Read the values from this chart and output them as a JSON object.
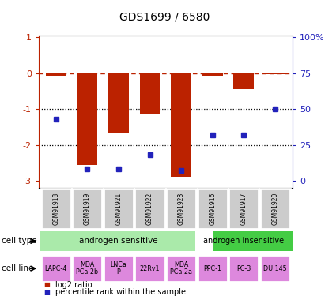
{
  "title": "GDS1699 / 6580",
  "samples": [
    "GSM91918",
    "GSM91919",
    "GSM91921",
    "GSM91922",
    "GSM91923",
    "GSM91916",
    "GSM91917",
    "GSM91920"
  ],
  "log2_ratio": [
    -0.07,
    -2.55,
    -1.65,
    -1.12,
    -2.9,
    -0.08,
    -0.45,
    -0.03
  ],
  "percentile_rank": [
    43,
    8,
    8,
    18,
    7,
    32,
    32,
    50
  ],
  "cell_lines": [
    "LAPC-4",
    "MDA\nPCa 2b",
    "LNCa\nP",
    "22Rv1",
    "MDA\nPCa 2a",
    "PPC-1",
    "PC-3",
    "DU 145"
  ],
  "bar_color": "#bb2200",
  "dot_color": "#2222bb",
  "ylim_min": -3.2,
  "ylim_max": 1.05,
  "sensitive_color": "#aaeaaa",
  "insensitive_color": "#44cc44",
  "cellline_color": "#dd88dd",
  "sample_bg_color": "#cccccc",
  "legend_red_label": "log2 ratio",
  "legend_blue_label": "percentile rank within the sample",
  "n_sensitive": 5,
  "n_insensitive": 3
}
